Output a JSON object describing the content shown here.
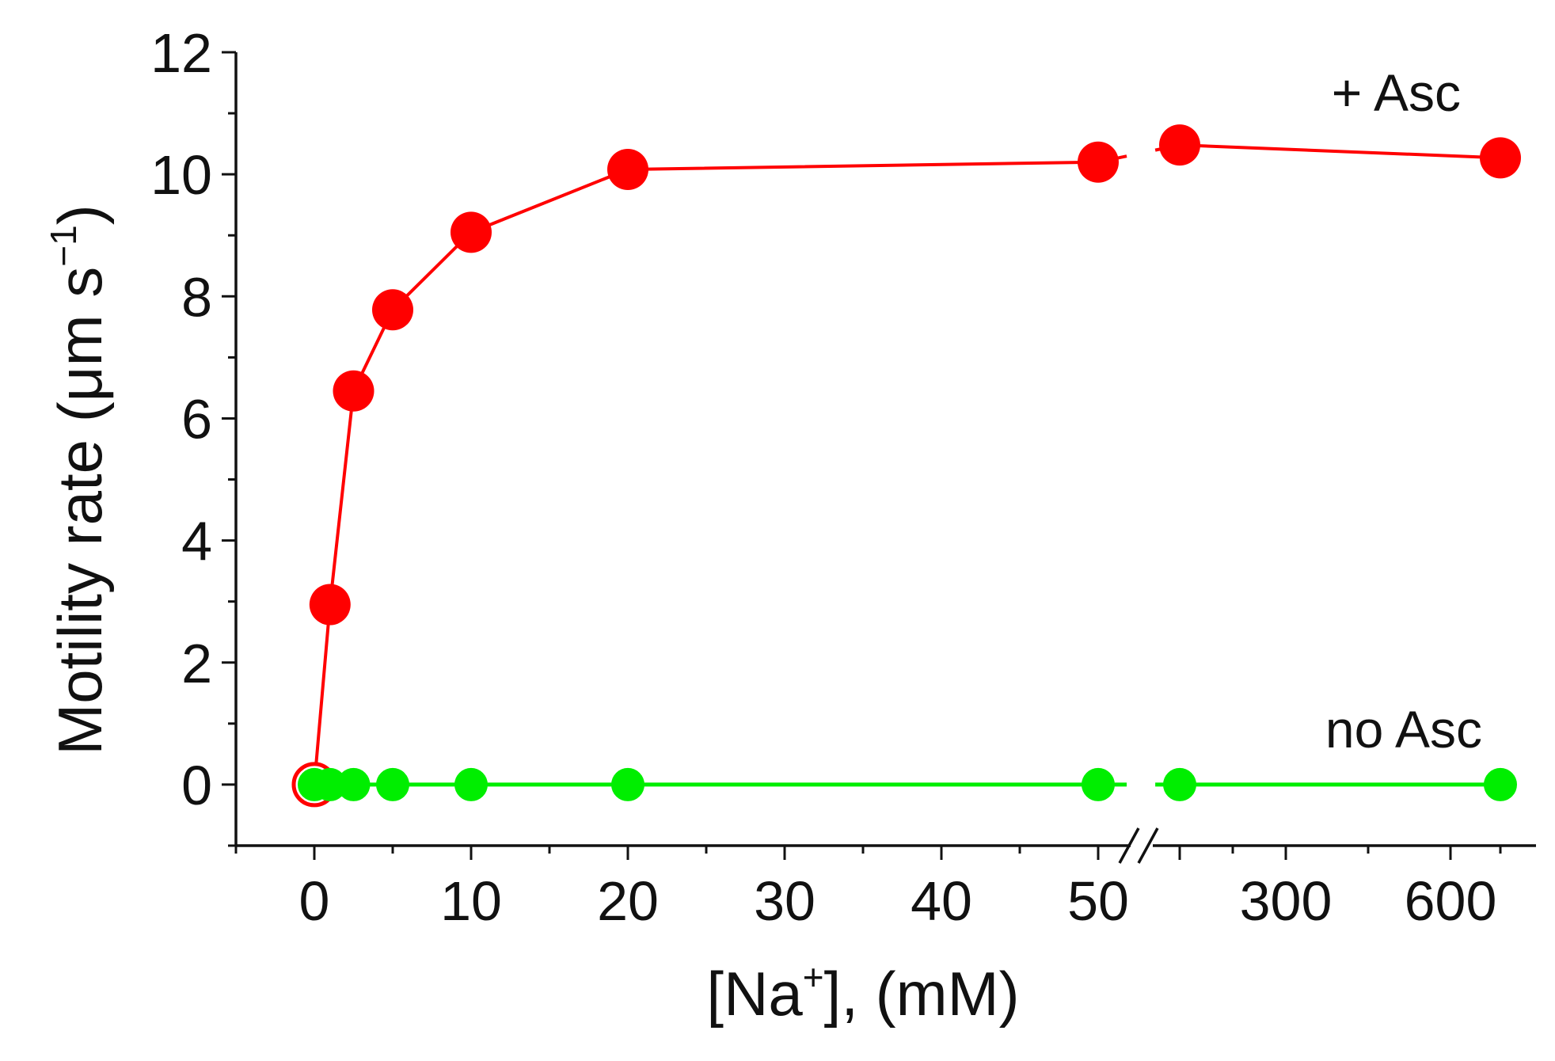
{
  "chart_data": {
    "type": "line",
    "xlabel": {
      "pre": "[Na",
      "sup": "+",
      "post": "], (mM)"
    },
    "ylabel": {
      "pre": "Motility rate (μm s",
      "sup": "−1",
      "post": ")"
    },
    "ylim": [
      -1,
      12
    ],
    "y_ticks": [
      0,
      2,
      4,
      6,
      8,
      10,
      12
    ],
    "x_tick_labels": [
      {
        "value": 0,
        "label": "0"
      },
      {
        "value": 10,
        "label": "10"
      },
      {
        "value": 20,
        "label": "20"
      },
      {
        "value": 30,
        "label": "30"
      },
      {
        "value": 40,
        "label": "40"
      },
      {
        "value": 50,
        "label": "50"
      },
      {
        "value": 300,
        "label": "300"
      },
      {
        "value": 600,
        "label": "600"
      }
    ],
    "x_axis_break": {
      "after": 50,
      "before": 150
    },
    "x_hidden_tick_values": [
      150
    ],
    "series": [
      {
        "name": "+ Asc",
        "color": "#ff0000",
        "x": [
          0,
          1,
          2.5,
          5,
          10,
          20,
          50,
          150,
          700
        ],
        "y": [
          0,
          2.95,
          6.45,
          7.78,
          9.05,
          10.08,
          10.2,
          10.48,
          10.27
        ]
      },
      {
        "name": "no Asc",
        "color": "#00ee00",
        "x": [
          0,
          1,
          2.5,
          5,
          10,
          20,
          50,
          150,
          700
        ],
        "y": [
          0,
          0,
          0,
          0,
          0,
          0,
          0,
          0,
          0
        ]
      }
    ]
  }
}
